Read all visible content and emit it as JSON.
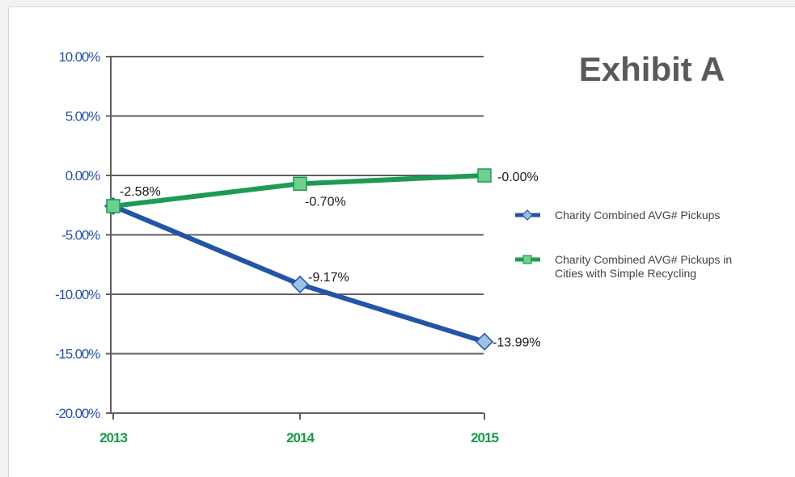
{
  "chart_data": {
    "type": "line",
    "title": "Exhibit A",
    "categories": [
      "2013",
      "2014",
      "2015"
    ],
    "ylim": [
      -20,
      10
    ],
    "y_ticks": [
      10,
      5,
      0,
      -5,
      -10,
      -15,
      -20
    ],
    "y_tick_labels": [
      "10.00%",
      "5.00%",
      "0.00%",
      "-5.00%",
      "-10.00%",
      "-15.00%",
      "-20.00%"
    ],
    "grid": true,
    "legend_position": "right",
    "series": [
      {
        "name": "Charity Combined AVG# Pickups",
        "values": [
          -2.58,
          -9.17,
          -13.99
        ],
        "labels": [
          "",
          "-9.17%",
          "-13.99%"
        ],
        "marker": "diamond",
        "color": "#2354a8",
        "marker_fill": "#9cc0e6"
      },
      {
        "name": "Charity Combined AVG# Pickups in Cities with Simple Recycling",
        "legend_lines": [
          "Charity Combined AVG# Pickups in",
          "Cities with Simple Recycling"
        ],
        "values": [
          -2.58,
          -0.7,
          -0.0
        ],
        "labels": [
          "-2.58%",
          "-0.70%",
          "-0.00%"
        ],
        "marker": "square",
        "color": "#1f9a55",
        "marker_fill": "#6fcf8e"
      }
    ]
  }
}
